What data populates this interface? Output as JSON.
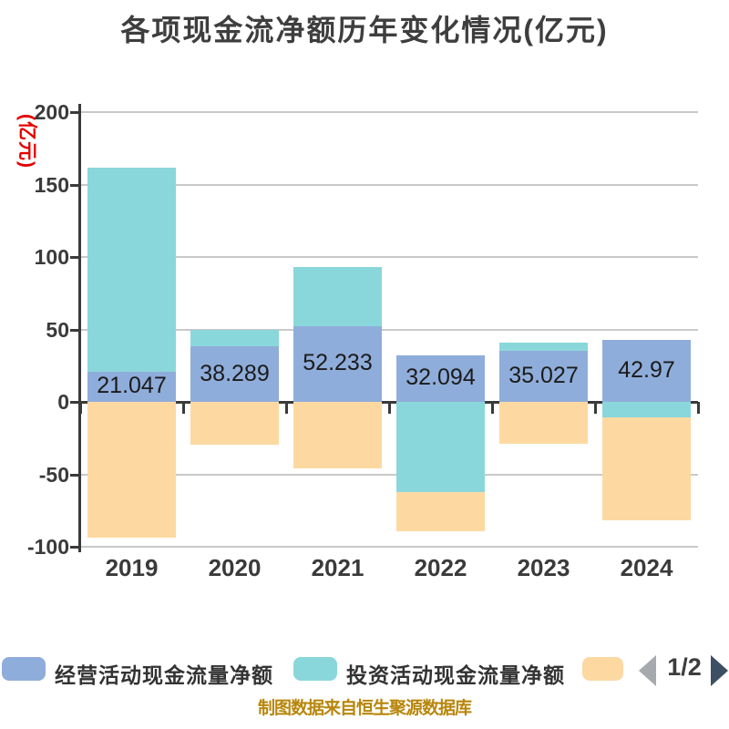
{
  "title": "各项现金流净额历年变化情况(亿元)",
  "y_axis": {
    "unit_label": "(亿元)",
    "unit_label_color": "#e60000",
    "ticks": [
      200,
      150,
      100,
      50,
      0,
      -50,
      -100
    ]
  },
  "chart_data": {
    "type": "bar",
    "stacked": true,
    "categories": [
      "2019",
      "2020",
      "2021",
      "2022",
      "2023",
      "2024"
    ],
    "series": [
      {
        "name": "经营活动现金流量净额",
        "color": "#8fadda",
        "values": [
          21.047,
          38.289,
          52.233,
          32.094,
          35.027,
          42.97
        ]
      },
      {
        "name": "投资活动现金流量净额",
        "color": "#8ad7db",
        "values": [
          140.5,
          11.5,
          40.8,
          -62.5,
          6.0,
          -10.7
        ]
      },
      {
        "name": "",
        "color": "#fdd9a1",
        "values": [
          -93.7,
          -29.5,
          -46.2,
          -27.0,
          -28.9,
          -71.0
        ]
      }
    ],
    "bar_labels": [
      "21.047",
      "38.289",
      "52.233",
      "32.094",
      "35.027",
      "42.97"
    ],
    "ylim": [
      -100,
      200
    ],
    "grid": true,
    "legend_position": "bottom"
  },
  "legend": {
    "items": [
      {
        "label": "经营活动现金流量净额",
        "color": "#8fadda"
      },
      {
        "label": "投资活动现金流量净额",
        "color": "#8ad7db"
      },
      {
        "label": "",
        "color": "#fdd9a1"
      }
    ],
    "pagination": {
      "label": "1/2"
    }
  },
  "caption": "制图数据来自恒生聚源数据库",
  "colors": {
    "axis": "#3a3a3a",
    "grid": "#c9c9c9",
    "title": "#3e3e3e",
    "bar_value_text": "#1b1b1b",
    "caption": "#b8860b",
    "pager_left_arrow": "#a6a9ad",
    "pager_right_arrow": "#3d4f63"
  }
}
